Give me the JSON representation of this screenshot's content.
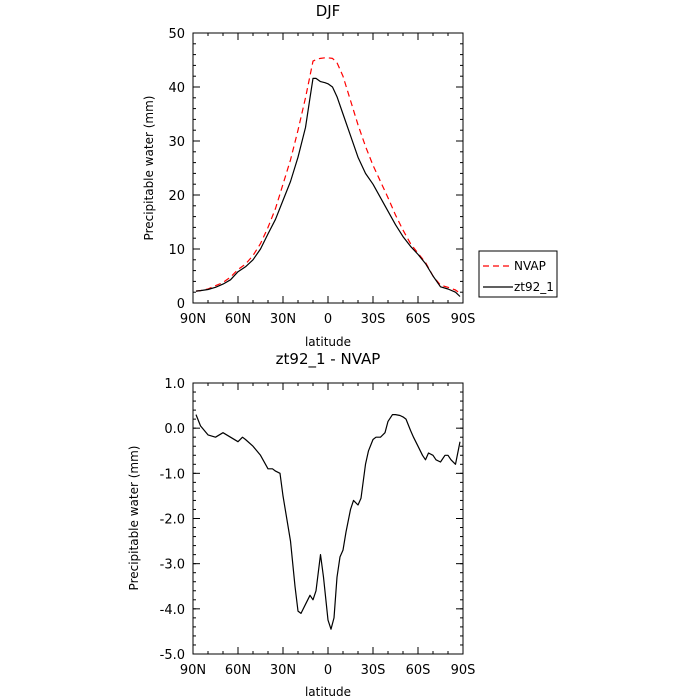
{
  "chart_data": [
    {
      "type": "line",
      "title": "DJF",
      "xlabel": "latitude",
      "ylabel": "Precipitable water (mm)",
      "xlim": [
        90,
        -90
      ],
      "ylim": [
        0,
        50
      ],
      "xticks": [
        90,
        60,
        30,
        0,
        -30,
        -60,
        -90
      ],
      "xtick_labels": [
        "90N",
        "60N",
        "30N",
        "0",
        "30S",
        "60S",
        "90S"
      ],
      "yticks": [
        0,
        10,
        20,
        30,
        40,
        50
      ],
      "ytick_labels": [
        "0",
        "10",
        "20",
        "30",
        "40",
        "50"
      ],
      "grid": false,
      "legend_position": "outside-right",
      "series": [
        {
          "name": "NVAP",
          "color": "#ff0000",
          "dash": "dashed",
          "x": [
            88,
            85,
            80,
            75,
            70,
            65,
            60,
            55,
            50,
            45,
            40,
            35,
            30,
            25,
            20,
            15,
            10,
            7,
            5,
            2,
            0,
            -3,
            -6,
            -10,
            -15,
            -20,
            -25,
            -30,
            -35,
            -40,
            -45,
            -50,
            -55,
            -60,
            -65,
            -70,
            -75,
            -80,
            -85,
            -88
          ],
          "values": [
            2.2,
            2.3,
            2.6,
            3.2,
            3.8,
            4.8,
            6.2,
            7.2,
            8.8,
            11,
            14,
            17.5,
            22,
            26.5,
            32,
            38,
            44.8,
            45.2,
            45.3,
            45.4,
            45.4,
            45.3,
            44.5,
            42,
            37.5,
            33,
            29,
            25.5,
            22.5,
            19.5,
            16.3,
            13.5,
            11,
            9.2,
            7.5,
            5,
            3.3,
            2.9,
            2.4,
            1.8
          ]
        },
        {
          "name": "zt92_1",
          "color": "#000000",
          "dash": "solid",
          "x": [
            88,
            85,
            80,
            75,
            70,
            65,
            60,
            55,
            50,
            45,
            40,
            35,
            30,
            25,
            20,
            15,
            12,
            10,
            8,
            5,
            2,
            0,
            -3,
            -6,
            -10,
            -15,
            -20,
            -25,
            -30,
            -35,
            -40,
            -45,
            -50,
            -55,
            -60,
            -65,
            -70,
            -75,
            -80,
            -85,
            -88
          ],
          "values": [
            2.2,
            2.3,
            2.5,
            2.9,
            3.5,
            4.3,
            5.8,
            6.7,
            8,
            10,
            12.8,
            15.5,
            19,
            22.5,
            27,
            32.5,
            38,
            41.6,
            41.6,
            41,
            40.8,
            40.6,
            40,
            38.2,
            35,
            31,
            27,
            24,
            22,
            19.5,
            17,
            14.5,
            12.3,
            10.5,
            9,
            7.3,
            5,
            3,
            2.6,
            2,
            1.2
          ]
        }
      ]
    },
    {
      "type": "line",
      "title": "zt92_1 - NVAP",
      "xlabel": "latitude",
      "ylabel": "Precipitable water (mm)",
      "xlim": [
        90,
        -90
      ],
      "ylim": [
        -5,
        1
      ],
      "xticks": [
        90,
        60,
        30,
        0,
        -30,
        -60,
        -90
      ],
      "xtick_labels": [
        "90N",
        "60N",
        "30N",
        "0",
        "30S",
        "60S",
        "90S"
      ],
      "yticks": [
        1,
        0,
        -1,
        -2,
        -3,
        -4,
        -5
      ],
      "ytick_labels": [
        "1.0",
        "0.0",
        "-1.0",
        "-2.0",
        "-3.0",
        "-4.0",
        "-5.0"
      ],
      "grid": false,
      "series": [
        {
          "color": "#000000",
          "dash": "solid",
          "x": [
            88,
            85,
            80,
            75,
            70,
            65,
            60,
            57,
            55,
            50,
            45,
            40,
            37,
            35,
            32,
            30,
            25,
            22,
            20,
            18,
            15,
            12,
            10,
            8,
            5,
            3,
            0,
            -2,
            -4,
            -6,
            -8,
            -10,
            -12,
            -15,
            -17,
            -20,
            -22,
            -25,
            -27,
            -30,
            -32,
            -35,
            -38,
            -40,
            -43,
            -45,
            -48,
            -50,
            -52,
            -55,
            -57,
            -60,
            -63,
            -65,
            -67,
            -70,
            -72,
            -75,
            -78,
            -80,
            -82,
            -85,
            -88
          ],
          "values": [
            0.3,
            0.05,
            -0.15,
            -0.2,
            -0.1,
            -0.2,
            -0.3,
            -0.2,
            -0.25,
            -0.4,
            -0.6,
            -0.9,
            -0.9,
            -0.95,
            -1.0,
            -1.5,
            -2.5,
            -3.5,
            -4.05,
            -4.1,
            -3.9,
            -3.7,
            -3.8,
            -3.6,
            -2.8,
            -3.3,
            -4.25,
            -4.45,
            -4.2,
            -3.3,
            -2.85,
            -2.7,
            -2.3,
            -1.8,
            -1.6,
            -1.7,
            -1.55,
            -0.8,
            -0.5,
            -0.25,
            -0.2,
            -0.2,
            -0.1,
            0.15,
            0.3,
            0.3,
            0.28,
            0.25,
            0.2,
            -0.05,
            -0.2,
            -0.4,
            -0.6,
            -0.7,
            -0.55,
            -0.6,
            -0.7,
            -0.75,
            -0.6,
            -0.6,
            -0.7,
            -0.8,
            -0.3
          ]
        }
      ]
    }
  ]
}
